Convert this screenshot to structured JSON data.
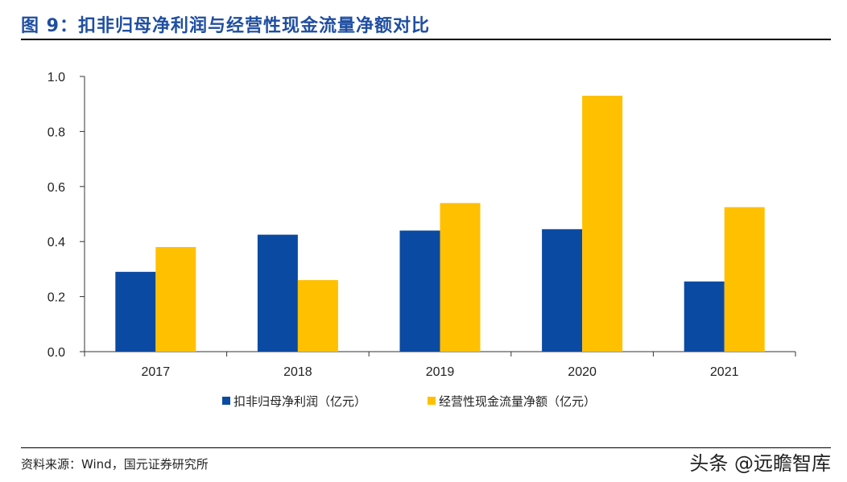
{
  "header": {
    "title": "图 9：扣非归母净利润与经营性现金流量净额对比"
  },
  "footer": {
    "source": "资料来源：Wind，国元证券研究所",
    "watermark": "头条 @远瞻智库"
  },
  "chart_data": {
    "type": "bar",
    "categories": [
      "2017",
      "2018",
      "2019",
      "2020",
      "2021"
    ],
    "series": [
      {
        "name": "扣非归母净利润（亿元）",
        "color": "#0b4aa2",
        "values": [
          0.29,
          0.425,
          0.44,
          0.445,
          0.255
        ]
      },
      {
        "name": "经营性现金流量净额（亿元）",
        "color": "#ffc000",
        "values": [
          0.38,
          0.26,
          0.54,
          0.93,
          0.525
        ]
      }
    ],
    "yticks": [
      "0.0",
      "0.2",
      "0.4",
      "0.6",
      "0.8",
      "1.0"
    ],
    "ylim": [
      0,
      1.0
    ],
    "grid": false,
    "legend": "bottom"
  }
}
